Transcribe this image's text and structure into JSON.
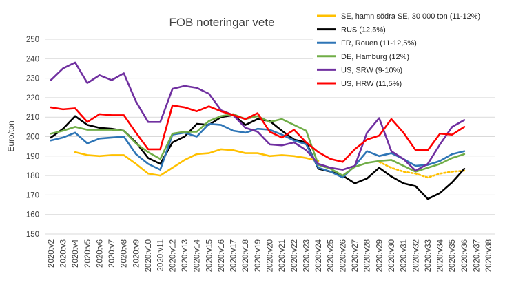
{
  "chart_data": {
    "type": "line",
    "title": "FOB noteringar vete",
    "xlabel": "",
    "ylabel": "Euro/ton",
    "ylim": [
      150,
      250
    ],
    "yticks": [
      150,
      160,
      170,
      180,
      190,
      200,
      210,
      220,
      230,
      240,
      250
    ],
    "grid": true,
    "legend_position": "top-right",
    "categories": [
      "2020:v2",
      "2020:v3",
      "2020:v4",
      "2020:v5",
      "2020:v6",
      "2020:v7",
      "2020:v8",
      "2020:v9",
      "2020:v10",
      "2020:v11",
      "2020:v12",
      "2020:v13",
      "2020:v14",
      "2020:v15",
      "2020:v16",
      "2020:v17",
      "2020:v18",
      "2020:v19",
      "2020:v20",
      "2020:v21",
      "2020:v22",
      "2020:v23",
      "2020:v24",
      "2020:v25",
      "2020:v26",
      "2020:v27",
      "2020:v28",
      "2020:v29",
      "2020:v30",
      "2020:v31",
      "2020:v32",
      "2020:v33",
      "2020:v34",
      "2020:v35",
      "2020:v36",
      "2020:v37",
      "2020:v38"
    ],
    "series": [
      {
        "name": "SE, hamn södra SE, 30 000 ton (11-12%)",
        "color": "#FFC000",
        "values": [
          null,
          null,
          192,
          190.5,
          190,
          190.5,
          190.5,
          186,
          181,
          180,
          184,
          188,
          191,
          191.5,
          193.5,
          193,
          191.5,
          191.5,
          190,
          190.5,
          190,
          189,
          187.5,
          null,
          null,
          null,
          null,
          null,
          null,
          null,
          null,
          null,
          null,
          null,
          null,
          null,
          null
        ],
        "dotted_values": [
          null,
          null,
          null,
          null,
          null,
          null,
          null,
          null,
          null,
          null,
          null,
          null,
          null,
          null,
          null,
          null,
          null,
          null,
          null,
          null,
          null,
          null,
          null,
          null,
          null,
          null,
          null,
          187,
          184,
          182,
          181,
          179,
          181,
          182,
          182.5,
          null,
          null
        ]
      },
      {
        "name": "RUS (12,5%)",
        "color": "#000000",
        "values": [
          199.5,
          204,
          210.5,
          206,
          204.5,
          204,
          203,
          197,
          189,
          186,
          197,
          200,
          206.5,
          206,
          210,
          211,
          206,
          209,
          208,
          203,
          198.5,
          197,
          183.5,
          182,
          180,
          176,
          178.5,
          184,
          179.5,
          176,
          174.5,
          168,
          171,
          176.5,
          183.5,
          null,
          null
        ]
      },
      {
        "name": "FR, Rouen (11-12,5%)",
        "color": "#2E75B6",
        "values": [
          198,
          199.5,
          202,
          196.5,
          199,
          199.5,
          200,
          191,
          186,
          183,
          201,
          202,
          200,
          206.5,
          206,
          203,
          202,
          204,
          203.5,
          201,
          198,
          196,
          184,
          182,
          179,
          185,
          192.5,
          190,
          191.5,
          188.5,
          185,
          185.5,
          187.5,
          191,
          192.5,
          null,
          null
        ]
      },
      {
        "name": "DE, Hamburg (12%)",
        "color": "#70AD47",
        "values": [
          201.5,
          203,
          205,
          203.5,
          203.5,
          203.5,
          203,
          196.5,
          192,
          188.5,
          201.5,
          202.5,
          202.5,
          208,
          210.5,
          211.5,
          209,
          210.5,
          207.5,
          209,
          206,
          203,
          185.5,
          183.5,
          180,
          184.5,
          186.5,
          187.5,
          188,
          185,
          182,
          184,
          186,
          189,
          191,
          null,
          null
        ]
      },
      {
        "name": "US, SRW (9-10%)",
        "color": "#7030A0",
        "values": [
          229,
          235,
          238,
          227.5,
          231.5,
          229,
          232.5,
          218,
          207.5,
          207.5,
          224.5,
          226,
          225,
          222,
          213.5,
          211,
          204.5,
          202.5,
          196,
          195.5,
          197,
          193,
          186,
          184,
          183,
          185,
          202,
          209.5,
          192.5,
          188.5,
          182.5,
          186,
          196,
          205,
          208.5,
          null,
          null
        ]
      },
      {
        "name": "US, HRW (11,5%)",
        "color": "#FF0000",
        "values": [
          215,
          214,
          214.5,
          207.5,
          211.5,
          211,
          211,
          202,
          193.5,
          193.5,
          216,
          215,
          213,
          215.5,
          213,
          211,
          209,
          212,
          202.5,
          199.5,
          203.5,
          197,
          192,
          188.5,
          187,
          193.5,
          198.5,
          200.5,
          209,
          202,
          193,
          193,
          201.5,
          201,
          205,
          null,
          null
        ]
      }
    ]
  }
}
